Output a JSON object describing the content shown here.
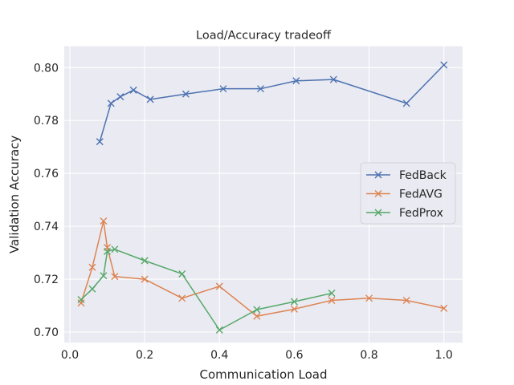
{
  "chart_data": {
    "type": "line",
    "title": "Load/Accuracy tradeoff",
    "xlabel": "Communication Load",
    "ylabel": "Validation Accuracy",
    "xlim": [
      -0.015,
      1.05
    ],
    "ylim": [
      0.696,
      0.8081
    ],
    "xticks": [
      0.0,
      0.2,
      0.4,
      0.6,
      0.8,
      1.0
    ],
    "xtick_labels": [
      "0.0",
      "0.2",
      "0.4",
      "0.6",
      "0.8",
      "1.0"
    ],
    "yticks": [
      0.7,
      0.72,
      0.74,
      0.76,
      0.78,
      0.8
    ],
    "ytick_labels": [
      "0.70",
      "0.72",
      "0.74",
      "0.76",
      "0.78",
      "0.80"
    ],
    "grid": true,
    "legend_position": "center-right",
    "marker": "x",
    "series": [
      {
        "name": "FedBack",
        "color": "#4c72b0",
        "x": [
          0.08,
          0.11,
          0.135,
          0.17,
          0.215,
          0.31,
          0.41,
          0.51,
          0.605,
          0.705,
          0.9,
          1.0
        ],
        "y": [
          0.772,
          0.7865,
          0.789,
          0.7915,
          0.788,
          0.79,
          0.792,
          0.792,
          0.795,
          0.7955,
          0.7865,
          0.801
        ]
      },
      {
        "name": "FedAVG",
        "color": "#dd8452",
        "x": [
          0.03,
          0.06,
          0.09,
          0.1,
          0.12,
          0.2,
          0.3,
          0.4,
          0.5,
          0.6,
          0.7,
          0.8,
          0.9,
          1.0
        ],
        "y": [
          0.711,
          0.7245,
          0.742,
          0.732,
          0.721,
          0.72,
          0.7128,
          0.7173,
          0.706,
          0.7087,
          0.712,
          0.7128,
          0.712,
          0.709
        ]
      },
      {
        "name": "FedProx",
        "color": "#55a868",
        "x": [
          0.03,
          0.06,
          0.09,
          0.1,
          0.12,
          0.2,
          0.3,
          0.4,
          0.5,
          0.6,
          0.7
        ],
        "y": [
          0.7123,
          0.7163,
          0.7213,
          0.7305,
          0.7313,
          0.727,
          0.722,
          0.7008,
          0.7085,
          0.7115,
          0.7147
        ]
      }
    ]
  }
}
